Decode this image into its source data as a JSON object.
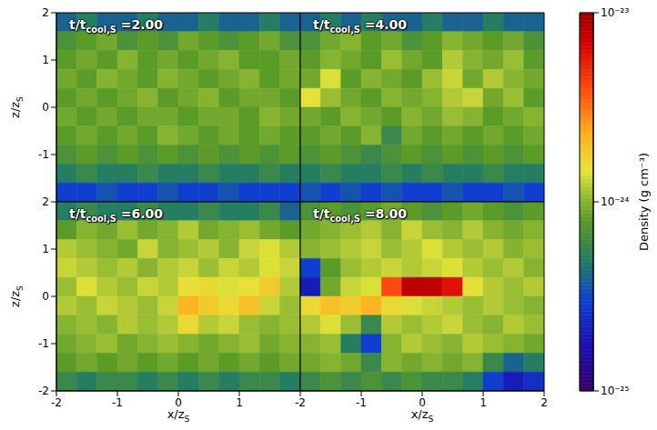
{
  "chart_data": {
    "type": "heatmap",
    "panels": [
      {
        "title": "t/tcool,S =2.00",
        "title_subscript": "cool,S",
        "xlim": [
          -2,
          2
        ],
        "ylim": [
          -2,
          2
        ],
        "yticks": [
          -1,
          0,
          1,
          2
        ],
        "ylabel": "z/zS",
        "ylabel_subscript": "S",
        "tick_labels": "y",
        "cells": [
          [
            4e-25,
            5e-25,
            4e-25,
            4e-25,
            5e-25,
            4e-25,
            4e-25,
            5e-25,
            4e-25,
            4e-25,
            5e-25,
            4e-25
          ],
          [
            7e-25,
            8e-25,
            9e-25,
            7e-25,
            8e-25,
            7e-25,
            9e-25,
            8e-25,
            7e-25,
            8e-25,
            9e-25,
            7e-25
          ],
          [
            8e-25,
            9e-25,
            8e-25,
            1e-24,
            8e-25,
            9e-25,
            8e-25,
            9e-25,
            1e-24,
            8e-25,
            8e-25,
            9e-25
          ],
          [
            9e-25,
            8e-25,
            1e-24,
            9e-25,
            8e-25,
            1e-24,
            9e-25,
            8e-25,
            9e-25,
            1e-24,
            8e-25,
            9e-25
          ],
          [
            8e-25,
            9e-25,
            8e-25,
            9e-25,
            1e-24,
            8e-25,
            9e-25,
            1e-24,
            8e-25,
            9e-25,
            9e-25,
            8e-25
          ],
          [
            9e-25,
            8e-25,
            9e-25,
            8e-25,
            9e-25,
            9e-25,
            8e-25,
            9e-25,
            9e-25,
            8e-25,
            1e-24,
            9e-25
          ],
          [
            8e-25,
            9e-25,
            8e-25,
            9e-25,
            8e-25,
            1e-24,
            9e-25,
            8e-25,
            9e-25,
            8e-25,
            9e-25,
            8e-25
          ],
          [
            7e-25,
            8e-25,
            7e-25,
            8e-25,
            7e-25,
            8e-25,
            7e-25,
            8e-25,
            7e-25,
            8e-25,
            7e-25,
            8e-25
          ],
          [
            5e-25,
            6e-25,
            5e-25,
            5e-25,
            6e-25,
            5e-25,
            5e-25,
            6e-25,
            5e-25,
            5e-25,
            6e-25,
            5e-25
          ],
          [
            3e-25,
            3e-25,
            3.5e-25,
            3e-25,
            3e-25,
            3.5e-25,
            3e-25,
            3e-25,
            3.5e-25,
            3e-25,
            3e-25,
            3e-25
          ]
        ]
      },
      {
        "title": "t/tcool,S =4.00",
        "title_subscript": "cool,S",
        "xlim": [
          -2,
          2
        ],
        "ylim": [
          -2,
          2
        ],
        "tick_labels": false,
        "cells": [
          [
            4e-25,
            5e-25,
            4e-25,
            5e-25,
            4e-25,
            4e-25,
            5e-25,
            4e-25,
            4e-25,
            5e-25,
            4e-25,
            4e-25
          ],
          [
            7e-25,
            9e-25,
            1e-24,
            8e-25,
            9e-25,
            7e-25,
            8e-25,
            1e-24,
            9e-25,
            8e-25,
            9e-25,
            7e-25
          ],
          [
            8e-25,
            1e-24,
            9e-25,
            8e-25,
            1.1e-24,
            9e-25,
            8e-25,
            1.2e-24,
            1e-24,
            9e-25,
            1.1e-24,
            8e-25
          ],
          [
            9e-25,
            1.4e-24,
            8e-25,
            1e-24,
            9e-25,
            8e-25,
            1.1e-24,
            1.3e-24,
            9e-25,
            1.2e-24,
            1e-24,
            9e-25
          ],
          [
            1.5e-24,
            1.1e-24,
            9e-25,
            8e-25,
            1e-24,
            9e-25,
            1e-24,
            1.2e-24,
            1.3e-24,
            9e-25,
            1.1e-24,
            8e-25
          ],
          [
            9e-25,
            8e-25,
            1e-24,
            9e-25,
            8e-25,
            1e-24,
            9e-25,
            1.1e-24,
            1e-24,
            8e-25,
            9e-25,
            1e-24
          ],
          [
            8e-25,
            9e-25,
            8e-25,
            1e-24,
            6e-25,
            9e-25,
            8e-25,
            9e-25,
            8e-25,
            9e-25,
            8e-25,
            9e-25
          ],
          [
            7e-25,
            8e-25,
            7e-25,
            6e-25,
            7e-25,
            8e-25,
            7e-25,
            8e-25,
            7e-25,
            8e-25,
            7e-25,
            8e-25
          ],
          [
            5e-25,
            6e-25,
            5e-25,
            5e-25,
            6e-25,
            5e-25,
            6e-25,
            5e-25,
            5e-25,
            6e-25,
            5e-25,
            5e-25
          ],
          [
            3.5e-25,
            3e-25,
            3.5e-25,
            3e-25,
            3.5e-25,
            3e-25,
            3e-25,
            3.5e-25,
            3e-25,
            3e-25,
            3.5e-25,
            3e-25
          ]
        ]
      },
      {
        "title": "t/tcool,S =6.00",
        "title_subscript": "cool,S",
        "xlim": [
          -2,
          2
        ],
        "ylim": [
          -2,
          2
        ],
        "xticks": [
          -2,
          -1,
          0,
          1
        ],
        "yticks": [
          -2,
          -1,
          0,
          1,
          2
        ],
        "xlabel": "x/zS",
        "xlabel_subscript": "S",
        "ylabel": "z/zS",
        "ylabel_subscript": "S",
        "tick_labels": true,
        "cells": [
          [
            5e-25,
            6e-25,
            5e-25,
            5e-25,
            6e-25,
            5e-25,
            5e-25,
            6e-25,
            5e-25,
            5e-25,
            6e-25,
            4e-25
          ],
          [
            8e-25,
            1e-24,
            9e-25,
            1.1e-24,
            9e-25,
            1e-24,
            1.2e-24,
            9e-25,
            1e-24,
            1.1e-24,
            9e-25,
            8e-25
          ],
          [
            1.2e-24,
            1.1e-24,
            1e-24,
            9e-25,
            1.3e-24,
            1e-24,
            1.1e-24,
            1.2e-24,
            1e-24,
            1.3e-24,
            1.4e-24,
            1.2e-24
          ],
          [
            1.3e-24,
            1.2e-24,
            1.1e-24,
            1.2e-24,
            1e-24,
            1.2e-24,
            1.3e-24,
            1.1e-24,
            1.3e-24,
            1.2e-24,
            1.4e-24,
            1.3e-24
          ],
          [
            1.1e-24,
            1.4e-24,
            1.2e-24,
            1.1e-24,
            1.3e-24,
            1.2e-24,
            1.5e-24,
            1.6e-24,
            1.4e-24,
            1.5e-24,
            1.8e-24,
            1.2e-24
          ],
          [
            1.2e-24,
            1.1e-24,
            1.3e-24,
            1.2e-24,
            1.1e-24,
            1.3e-24,
            2.2e-24,
            1.8e-24,
            1.6e-24,
            2e-24,
            1.3e-24,
            1.1e-24
          ],
          [
            1e-24,
            1.1e-24,
            1e-24,
            1.2e-24,
            1.1e-24,
            1.2e-24,
            1.6e-24,
            1.2e-24,
            1.3e-24,
            1.1e-24,
            1e-24,
            1.1e-24
          ],
          [
            9e-25,
            1e-24,
            1.1e-24,
            9e-25,
            1e-24,
            1.1e-24,
            1e-24,
            9e-25,
            1e-24,
            1.1e-24,
            9e-25,
            1e-24
          ],
          [
            8e-25,
            9e-25,
            8e-25,
            9e-25,
            8e-25,
            9e-25,
            8e-25,
            9e-25,
            8e-25,
            9e-25,
            8e-25,
            9e-25
          ],
          [
            6e-25,
            5e-25,
            6e-25,
            6e-25,
            5e-25,
            6e-25,
            5e-25,
            6e-25,
            5e-25,
            6e-25,
            6e-25,
            5e-25
          ]
        ]
      },
      {
        "title": "t/tcool,S =8.00",
        "title_subscript": "cool,S",
        "xlim": [
          -2,
          2
        ],
        "ylim": [
          -2,
          2
        ],
        "xticks": [
          -2,
          -1,
          0,
          1,
          2
        ],
        "xlabel": "x/zS",
        "xlabel_subscript": "S",
        "tick_labels": "x",
        "cells": [
          [
            7e-25,
            8e-25,
            7e-25,
            8e-25,
            9e-25,
            8e-25,
            7e-25,
            8e-25,
            9e-25,
            8e-25,
            7e-25,
            8e-25
          ],
          [
            9e-25,
            1e-24,
            1.1e-24,
            1.2e-24,
            1e-24,
            1.3e-24,
            1.1e-24,
            1e-24,
            1.2e-24,
            1e-24,
            9e-25,
            1e-24
          ],
          [
            1e-24,
            1.1e-24,
            1.2e-24,
            1.3e-24,
            1.1e-24,
            1.2e-24,
            1.4e-24,
            1.2e-24,
            1.1e-24,
            1.2e-24,
            1e-24,
            1.1e-24
          ],
          [
            3e-25,
            8e-25,
            1.1e-24,
            1.2e-24,
            1.3e-24,
            1.2e-24,
            1.3e-24,
            1.4e-24,
            1.2e-24,
            1.1e-24,
            1.2e-24,
            1e-24
          ],
          [
            2e-25,
            9e-25,
            1.3e-24,
            1.4e-24,
            4e-24,
            8e-24,
            8e-24,
            6e-24,
            1.5e-24,
            1.2e-24,
            1.1e-24,
            1.2e-24
          ],
          [
            1.6e-24,
            2e-24,
            1.8e-24,
            2.2e-24,
            1.6e-24,
            1.4e-24,
            1.3e-24,
            1.2e-24,
            1.1e-24,
            1.2e-24,
            1.1e-24,
            1e-24
          ],
          [
            1.2e-24,
            1.4e-24,
            1.1e-24,
            6e-25,
            1.2e-24,
            1.1e-24,
            1.2e-24,
            1.3e-24,
            1.1e-24,
            1e-24,
            1.2e-24,
            1.1e-24
          ],
          [
            1e-24,
            1.1e-24,
            5e-25,
            3e-25,
            1e-24,
            1.2e-24,
            1.1e-24,
            1e-24,
            1.2e-24,
            1.1e-24,
            1e-24,
            9e-25
          ],
          [
            9e-25,
            1e-24,
            9e-25,
            6e-25,
            1e-24,
            9e-25,
            1e-24,
            9e-25,
            1e-24,
            6e-25,
            4e-25,
            5e-25
          ],
          [
            6e-25,
            7e-25,
            6e-25,
            7e-25,
            6e-25,
            7e-25,
            6e-25,
            6e-25,
            5e-25,
            3e-25,
            2e-25,
            2.5e-25
          ]
        ]
      }
    ],
    "colorbar": {
      "label": "Density (g cm⁻³)",
      "log": true,
      "lim": [
        1e-25,
        1e-23
      ],
      "ticks": [
        {
          "value": 1e-25,
          "label": "10⁻²⁵"
        },
        {
          "value": 1e-24,
          "label": "10⁻²⁴"
        },
        {
          "value": 1e-23,
          "label": "10⁻²³"
        }
      ]
    }
  }
}
